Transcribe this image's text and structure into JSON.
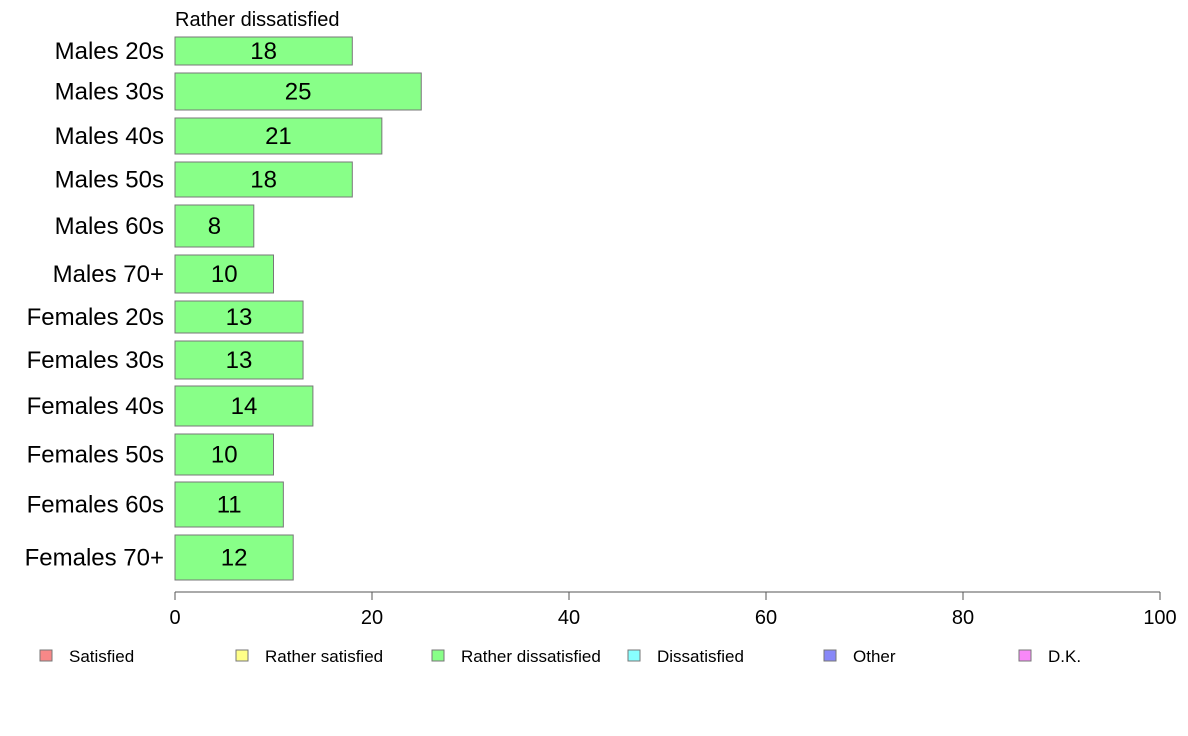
{
  "chart_data": {
    "type": "bar",
    "orientation": "horizontal",
    "title": "Rather dissatisfied",
    "categories": [
      "Males 20s",
      "Males 30s",
      "Males 40s",
      "Males 50s",
      "Males 60s",
      "Males 70+",
      "Females 20s",
      "Females 30s",
      "Females 40s",
      "Females 50s",
      "Females 60s",
      "Females 70+"
    ],
    "series": [
      {
        "name": "Rather dissatisfied",
        "values": [
          18,
          25,
          21,
          18,
          8,
          10,
          13,
          13,
          14,
          10,
          11,
          12
        ],
        "color": "#88ff88"
      }
    ],
    "xlim": [
      0,
      100
    ],
    "xticks": [
      0,
      20,
      40,
      60,
      80,
      100
    ],
    "grid": false,
    "legend": {
      "placement": "bottom",
      "entries": [
        {
          "label": "Satisfied",
          "color": "#f88888"
        },
        {
          "label": "Rather satisfied",
          "color": "#ffff88"
        },
        {
          "label": "Rather dissatisfied",
          "color": "#88ff88"
        },
        {
          "label": "Dissatisfied",
          "color": "#88ffff"
        },
        {
          "label": "Other",
          "color": "#8888f8"
        },
        {
          "label": "D.K.",
          "color": "#f888f8"
        }
      ]
    }
  }
}
